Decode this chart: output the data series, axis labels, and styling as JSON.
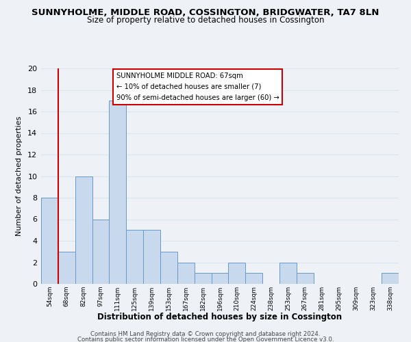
{
  "title": "SUNNYHOLME, MIDDLE ROAD, COSSINGTON, BRIDGWATER, TA7 8LN",
  "subtitle": "Size of property relative to detached houses in Cossington",
  "xlabel": "Distribution of detached houses by size in Cossington",
  "ylabel": "Number of detached properties",
  "bin_labels": [
    "54sqm",
    "68sqm",
    "82sqm",
    "97sqm",
    "111sqm",
    "125sqm",
    "139sqm",
    "153sqm",
    "167sqm",
    "182sqm",
    "196sqm",
    "210sqm",
    "224sqm",
    "238sqm",
    "253sqm",
    "267sqm",
    "281sqm",
    "295sqm",
    "309sqm",
    "323sqm",
    "338sqm"
  ],
  "bar_heights": [
    8,
    3,
    10,
    6,
    17,
    5,
    5,
    3,
    2,
    1,
    1,
    2,
    1,
    0,
    2,
    1,
    0,
    0,
    0,
    0,
    1
  ],
  "bar_color": "#c8d8ed",
  "bar_edge_color": "#6699cc",
  "highlight_color": "#cc0000",
  "red_line_x": 0.5,
  "ylim": [
    0,
    20
  ],
  "yticks": [
    0,
    2,
    4,
    6,
    8,
    10,
    12,
    14,
    16,
    18,
    20
  ],
  "annotation_title": "SUNNYHOLME MIDDLE ROAD: 67sqm",
  "annotation_line1": "← 10% of detached houses are smaller (7)",
  "annotation_line2": "90% of semi-detached houses are larger (60) →",
  "annotation_box_color": "#ffffff",
  "annotation_box_edge": "#cc0000",
  "footer_line1": "Contains HM Land Registry data © Crown copyright and database right 2024.",
  "footer_line2": "Contains public sector information licensed under the Open Government Licence v3.0.",
  "background_color": "#eef2f7",
  "grid_color": "#d8e4f0"
}
